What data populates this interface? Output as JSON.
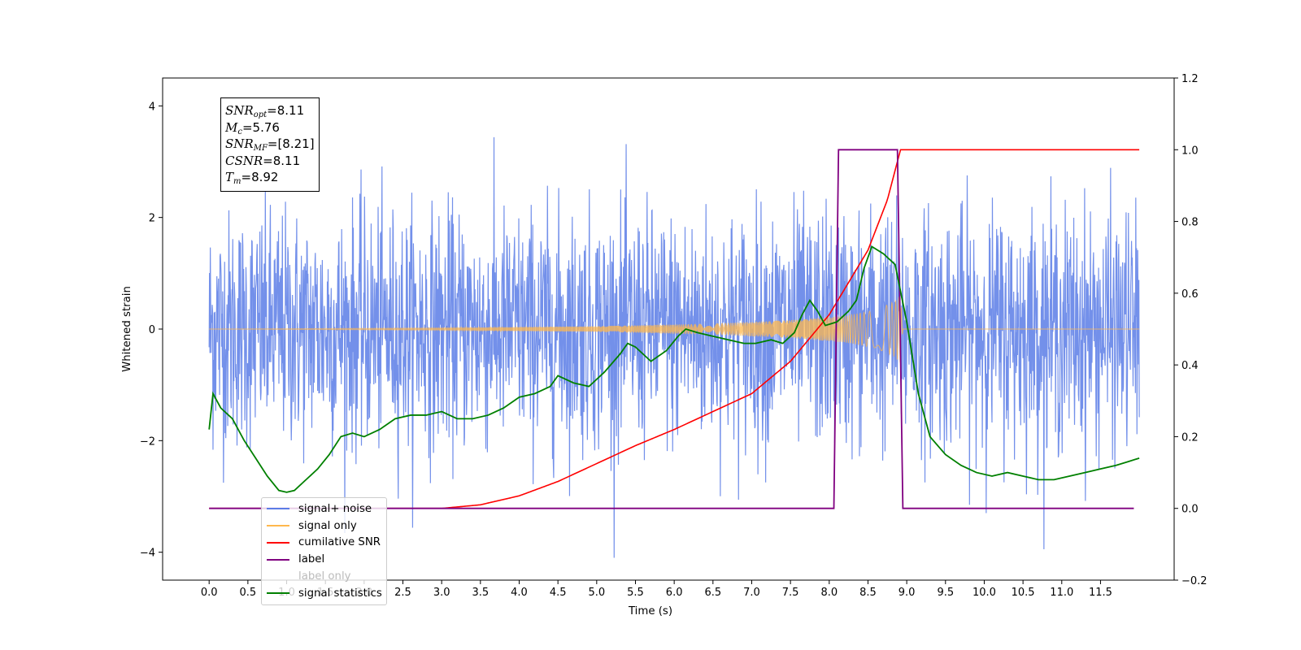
{
  "chart_data": {
    "type": "line",
    "xlabel": "Time (s)",
    "ylabel": "Whitened strain",
    "xlim": [
      -0.6,
      12.45
    ],
    "ylim": [
      -4.5,
      4.5
    ],
    "y2lim": [
      -0.2,
      1.2
    ],
    "x_ticks": [
      "0.0",
      "0.5",
      "1.0",
      "1.5",
      "2.0",
      "2.5",
      "3.0",
      "3.5",
      "4.0",
      "4.5",
      "5.0",
      "5.5",
      "6.0",
      "6.5",
      "7.0",
      "7.5",
      "8.0",
      "8.5",
      "9.0",
      "9.5",
      "10.0",
      "10.5",
      "11.0",
      "11.5"
    ],
    "y_ticks": [
      "−4",
      "−2",
      "0",
      "2",
      "4"
    ],
    "y2_ticks": [
      "−0.2",
      "0.0",
      "0.2",
      "0.4",
      "0.6",
      "0.8",
      "1.0",
      "1.2"
    ],
    "annotation": [
      {
        "sym": "SNR",
        "sub": "opt",
        "value": "=8.11"
      },
      {
        "sym": "M",
        "sub": "c",
        "value": "=5.76"
      },
      {
        "sym": "SNR",
        "sub": "MF",
        "value": "=[8.21]"
      },
      {
        "sym": "CSNR",
        "sub": "",
        "value": "=8.11"
      },
      {
        "sym": "T",
        "sub": "m",
        "value": "=8.92"
      }
    ],
    "legend_placement": "lower-left",
    "grid": false,
    "series": [
      {
        "name": "signal+ noise",
        "axis": "left",
        "color": "#5b7ce6",
        "kind": "noise",
        "description": "white noise, sigma ~1.0, spikes to about ±4, over 0.0–12.0 s"
      },
      {
        "name": "signal only",
        "axis": "left",
        "color": "#ffb84d",
        "kind": "chirp",
        "envelope_points": [
          [
            0.0,
            0.0
          ],
          [
            3.0,
            0.02
          ],
          [
            5.0,
            0.05
          ],
          [
            6.5,
            0.1
          ],
          [
            7.5,
            0.16
          ],
          [
            8.2,
            0.24
          ],
          [
            8.6,
            0.34
          ],
          [
            8.85,
            0.5
          ],
          [
            8.92,
            0.62
          ],
          [
            8.95,
            0.0
          ],
          [
            12.0,
            0.0
          ]
        ]
      },
      {
        "name": "cumilative SNR",
        "axis": "right",
        "color": "#ff0000",
        "points": [
          [
            0.0,
            0.0
          ],
          [
            3.0,
            0.0
          ],
          [
            3.5,
            0.01
          ],
          [
            4.0,
            0.035
          ],
          [
            4.5,
            0.075
          ],
          [
            5.0,
            0.125
          ],
          [
            5.5,
            0.175
          ],
          [
            6.0,
            0.22
          ],
          [
            6.5,
            0.27
          ],
          [
            7.0,
            0.32
          ],
          [
            7.5,
            0.41
          ],
          [
            8.0,
            0.54
          ],
          [
            8.5,
            0.72
          ],
          [
            8.75,
            0.86
          ],
          [
            8.92,
            1.0
          ],
          [
            12.0,
            1.0
          ]
        ]
      },
      {
        "name": "label",
        "axis": "right",
        "color": "#800080",
        "points": [
          [
            0.0,
            0.0
          ],
          [
            8.06,
            0.0
          ],
          [
            8.12,
            1.0
          ],
          [
            8.88,
            1.0
          ],
          [
            8.95,
            0.0
          ],
          [
            11.93,
            0.0
          ]
        ]
      },
      {
        "name": "label only",
        "axis": "right",
        "color": "#800080",
        "hidden_line": true
      },
      {
        "name": "signal statistics",
        "axis": "right",
        "color": "#008000",
        "points": [
          [
            0.0,
            0.22
          ],
          [
            0.05,
            0.32
          ],
          [
            0.15,
            0.28
          ],
          [
            0.3,
            0.25
          ],
          [
            0.45,
            0.19
          ],
          [
            0.6,
            0.14
          ],
          [
            0.75,
            0.09
          ],
          [
            0.9,
            0.05
          ],
          [
            1.0,
            0.045
          ],
          [
            1.1,
            0.05
          ],
          [
            1.25,
            0.08
          ],
          [
            1.4,
            0.11
          ],
          [
            1.55,
            0.15
          ],
          [
            1.7,
            0.2
          ],
          [
            1.85,
            0.21
          ],
          [
            2.0,
            0.2
          ],
          [
            2.2,
            0.22
          ],
          [
            2.4,
            0.25
          ],
          [
            2.6,
            0.26
          ],
          [
            2.8,
            0.26
          ],
          [
            3.0,
            0.27
          ],
          [
            3.2,
            0.25
          ],
          [
            3.4,
            0.25
          ],
          [
            3.6,
            0.26
          ],
          [
            3.8,
            0.28
          ],
          [
            4.0,
            0.31
          ],
          [
            4.2,
            0.32
          ],
          [
            4.4,
            0.34
          ],
          [
            4.5,
            0.37
          ],
          [
            4.7,
            0.35
          ],
          [
            4.9,
            0.34
          ],
          [
            5.1,
            0.38
          ],
          [
            5.3,
            0.43
          ],
          [
            5.4,
            0.46
          ],
          [
            5.5,
            0.45
          ],
          [
            5.6,
            0.43
          ],
          [
            5.7,
            0.41
          ],
          [
            5.9,
            0.44
          ],
          [
            6.05,
            0.48
          ],
          [
            6.15,
            0.5
          ],
          [
            6.3,
            0.49
          ],
          [
            6.5,
            0.48
          ],
          [
            6.7,
            0.47
          ],
          [
            6.9,
            0.46
          ],
          [
            7.05,
            0.46
          ],
          [
            7.25,
            0.47
          ],
          [
            7.4,
            0.46
          ],
          [
            7.55,
            0.49
          ],
          [
            7.65,
            0.54
          ],
          [
            7.75,
            0.58
          ],
          [
            7.85,
            0.55
          ],
          [
            7.95,
            0.51
          ],
          [
            8.1,
            0.52
          ],
          [
            8.25,
            0.55
          ],
          [
            8.35,
            0.58
          ],
          [
            8.45,
            0.67
          ],
          [
            8.55,
            0.73
          ],
          [
            8.7,
            0.71
          ],
          [
            8.85,
            0.68
          ],
          [
            9.0,
            0.52
          ],
          [
            9.15,
            0.32
          ],
          [
            9.3,
            0.2
          ],
          [
            9.5,
            0.15
          ],
          [
            9.7,
            0.12
          ],
          [
            9.9,
            0.1
          ],
          [
            10.1,
            0.09
          ],
          [
            10.3,
            0.1
          ],
          [
            10.5,
            0.09
          ],
          [
            10.7,
            0.08
          ],
          [
            10.9,
            0.08
          ],
          [
            11.1,
            0.09
          ],
          [
            11.3,
            0.1
          ],
          [
            11.5,
            0.11
          ],
          [
            11.7,
            0.12
          ],
          [
            11.85,
            0.13
          ],
          [
            12.0,
            0.14
          ]
        ]
      }
    ]
  }
}
